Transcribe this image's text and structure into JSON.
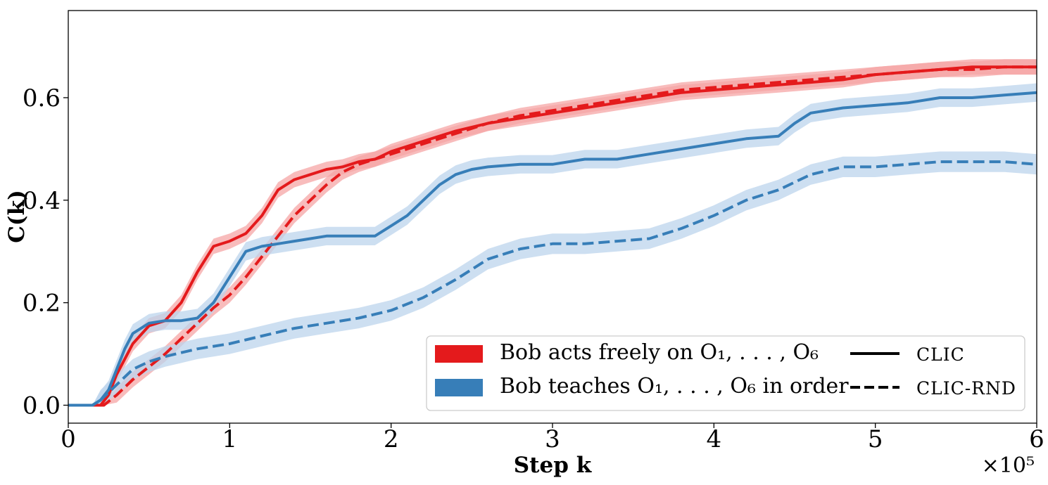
{
  "chart_data": {
    "type": "line",
    "title": "",
    "xlabel": "Step k",
    "ylabel": "C(k)",
    "x_multiplier": "×10⁵",
    "xlim": [
      0,
      6
    ],
    "ylim": [
      -0.035,
      0.77
    ],
    "xticks": [
      0,
      1,
      2,
      3,
      4,
      5,
      6
    ],
    "yticks": [
      0.0,
      0.2,
      0.4,
      0.6
    ],
    "xtick_labels": [
      "0",
      "1",
      "2",
      "3",
      "4",
      "5",
      "6"
    ],
    "ytick_labels": [
      "0.0",
      "0.2",
      "0.4",
      "0.6"
    ],
    "colors": {
      "red": "#e41a1c",
      "blue": "#377eb8",
      "red_band": "#f5a5a6",
      "blue_band": "#bcd4ec"
    },
    "series": [
      {
        "name": "Bob acts freely — CLIC",
        "condition": "free",
        "method": "CLIC",
        "color": "#e41a1c",
        "dash": "solid",
        "points": [
          [
            0,
            0
          ],
          [
            0.2,
            0
          ],
          [
            0.25,
            0.02
          ],
          [
            0.3,
            0.06
          ],
          [
            0.4,
            0.12
          ],
          [
            0.5,
            0.155
          ],
          [
            0.6,
            0.165
          ],
          [
            0.7,
            0.2
          ],
          [
            0.8,
            0.26
          ],
          [
            0.9,
            0.31
          ],
          [
            1.0,
            0.32
          ],
          [
            1.1,
            0.335
          ],
          [
            1.2,
            0.37
          ],
          [
            1.3,
            0.42
          ],
          [
            1.4,
            0.44
          ],
          [
            1.5,
            0.45
          ],
          [
            1.6,
            0.46
          ],
          [
            1.7,
            0.465
          ],
          [
            1.8,
            0.475
          ],
          [
            1.9,
            0.48
          ],
          [
            2.0,
            0.495
          ],
          [
            2.2,
            0.515
          ],
          [
            2.4,
            0.535
          ],
          [
            2.6,
            0.55
          ],
          [
            2.8,
            0.56
          ],
          [
            3.0,
            0.57
          ],
          [
            3.2,
            0.58
          ],
          [
            3.4,
            0.59
          ],
          [
            3.6,
            0.6
          ],
          [
            3.8,
            0.61
          ],
          [
            4.0,
            0.615
          ],
          [
            4.2,
            0.62
          ],
          [
            4.4,
            0.625
          ],
          [
            4.6,
            0.63
          ],
          [
            4.8,
            0.635
          ],
          [
            5.0,
            0.645
          ],
          [
            5.2,
            0.65
          ],
          [
            5.4,
            0.655
          ],
          [
            5.6,
            0.66
          ],
          [
            5.8,
            0.66
          ],
          [
            6.0,
            0.66
          ]
        ],
        "band": 0.015
      },
      {
        "name": "Bob acts freely — CLIC-RND",
        "condition": "free",
        "method": "CLIC-RND",
        "color": "#e41a1c",
        "dash": "dashed",
        "points": [
          [
            0,
            0
          ],
          [
            0.22,
            0
          ],
          [
            0.3,
            0.02
          ],
          [
            0.4,
            0.05
          ],
          [
            0.5,
            0.075
          ],
          [
            0.6,
            0.1
          ],
          [
            0.7,
            0.13
          ],
          [
            0.8,
            0.16
          ],
          [
            0.9,
            0.19
          ],
          [
            1.0,
            0.215
          ],
          [
            1.1,
            0.25
          ],
          [
            1.2,
            0.29
          ],
          [
            1.3,
            0.33
          ],
          [
            1.4,
            0.37
          ],
          [
            1.5,
            0.4
          ],
          [
            1.6,
            0.43
          ],
          [
            1.7,
            0.455
          ],
          [
            1.8,
            0.47
          ],
          [
            1.9,
            0.48
          ],
          [
            2.0,
            0.49
          ],
          [
            2.2,
            0.51
          ],
          [
            2.4,
            0.53
          ],
          [
            2.6,
            0.55
          ],
          [
            2.8,
            0.565
          ],
          [
            3.0,
            0.575
          ],
          [
            3.2,
            0.585
          ],
          [
            3.4,
            0.595
          ],
          [
            3.6,
            0.605
          ],
          [
            3.8,
            0.615
          ],
          [
            4.0,
            0.62
          ],
          [
            4.2,
            0.625
          ],
          [
            4.4,
            0.63
          ],
          [
            4.6,
            0.635
          ],
          [
            4.8,
            0.64
          ],
          [
            5.0,
            0.645
          ],
          [
            5.2,
            0.65
          ],
          [
            5.4,
            0.655
          ],
          [
            5.6,
            0.655
          ],
          [
            5.8,
            0.66
          ],
          [
            6.0,
            0.66
          ]
        ],
        "band": 0.015
      },
      {
        "name": "Bob teaches in order — CLIC",
        "condition": "teach",
        "method": "CLIC",
        "color": "#377eb8",
        "dash": "solid",
        "points": [
          [
            0,
            0
          ],
          [
            0.15,
            0
          ],
          [
            0.2,
            0.01
          ],
          [
            0.25,
            0.03
          ],
          [
            0.3,
            0.07
          ],
          [
            0.35,
            0.11
          ],
          [
            0.4,
            0.14
          ],
          [
            0.5,
            0.16
          ],
          [
            0.6,
            0.165
          ],
          [
            0.7,
            0.165
          ],
          [
            0.8,
            0.17
          ],
          [
            0.9,
            0.2
          ],
          [
            1.0,
            0.25
          ],
          [
            1.1,
            0.3
          ],
          [
            1.2,
            0.31
          ],
          [
            1.3,
            0.315
          ],
          [
            1.4,
            0.32
          ],
          [
            1.5,
            0.325
          ],
          [
            1.6,
            0.33
          ],
          [
            1.7,
            0.33
          ],
          [
            1.8,
            0.33
          ],
          [
            1.9,
            0.33
          ],
          [
            2.0,
            0.35
          ],
          [
            2.1,
            0.37
          ],
          [
            2.2,
            0.4
          ],
          [
            2.3,
            0.43
          ],
          [
            2.4,
            0.45
          ],
          [
            2.5,
            0.46
          ],
          [
            2.6,
            0.465
          ],
          [
            2.8,
            0.47
          ],
          [
            3.0,
            0.47
          ],
          [
            3.2,
            0.48
          ],
          [
            3.4,
            0.48
          ],
          [
            3.6,
            0.49
          ],
          [
            3.8,
            0.5
          ],
          [
            4.0,
            0.51
          ],
          [
            4.2,
            0.52
          ],
          [
            4.4,
            0.525
          ],
          [
            4.5,
            0.55
          ],
          [
            4.6,
            0.57
          ],
          [
            4.8,
            0.58
          ],
          [
            5.0,
            0.585
          ],
          [
            5.2,
            0.59
          ],
          [
            5.4,
            0.6
          ],
          [
            5.6,
            0.6
          ],
          [
            5.8,
            0.605
          ],
          [
            6.0,
            0.61
          ]
        ],
        "band": 0.018
      },
      {
        "name": "Bob teaches in order — CLIC-RND",
        "condition": "teach",
        "method": "CLIC-RND",
        "color": "#377eb8",
        "dash": "dashed",
        "points": [
          [
            0,
            0
          ],
          [
            0.15,
            0
          ],
          [
            0.2,
            0.01
          ],
          [
            0.3,
            0.04
          ],
          [
            0.4,
            0.07
          ],
          [
            0.5,
            0.085
          ],
          [
            0.6,
            0.095
          ],
          [
            0.8,
            0.11
          ],
          [
            1.0,
            0.12
          ],
          [
            1.2,
            0.135
          ],
          [
            1.4,
            0.15
          ],
          [
            1.6,
            0.16
          ],
          [
            1.8,
            0.17
          ],
          [
            2.0,
            0.185
          ],
          [
            2.2,
            0.21
          ],
          [
            2.4,
            0.245
          ],
          [
            2.6,
            0.285
          ],
          [
            2.8,
            0.305
          ],
          [
            3.0,
            0.315
          ],
          [
            3.2,
            0.315
          ],
          [
            3.4,
            0.32
          ],
          [
            3.6,
            0.325
          ],
          [
            3.8,
            0.345
          ],
          [
            4.0,
            0.37
          ],
          [
            4.2,
            0.4
          ],
          [
            4.4,
            0.42
          ],
          [
            4.6,
            0.45
          ],
          [
            4.8,
            0.465
          ],
          [
            5.0,
            0.465
          ],
          [
            5.2,
            0.47
          ],
          [
            5.4,
            0.475
          ],
          [
            5.6,
            0.475
          ],
          [
            5.8,
            0.475
          ],
          [
            6.0,
            0.47
          ]
        ],
        "band": 0.02
      }
    ],
    "legend": {
      "position": "lower right",
      "condition_entries": [
        {
          "label": "Bob acts freely on O₁, . . . , O₆",
          "color": "#e41a1c"
        },
        {
          "label": "Bob teaches O₁, . . . , O₆ in order",
          "color": "#377eb8"
        }
      ],
      "method_entries": [
        {
          "label": "CLIC",
          "dash": "solid"
        },
        {
          "label": "CLIC-RND",
          "dash": "dashed"
        }
      ]
    }
  }
}
